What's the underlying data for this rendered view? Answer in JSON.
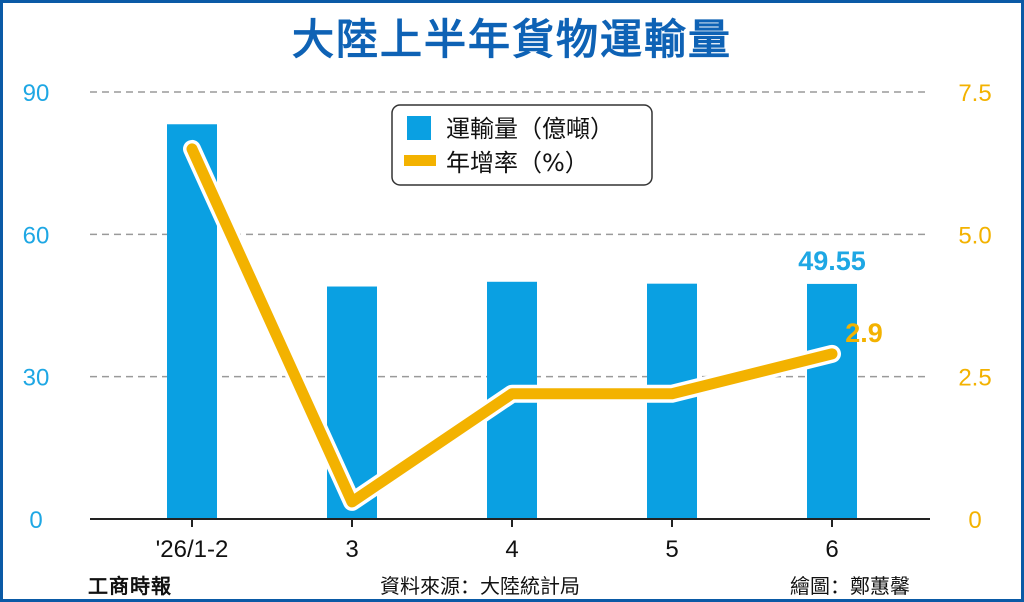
{
  "title": "大陸上半年貨物運輸量",
  "chart_data": {
    "type": "bar+line",
    "title": "大陸上半年貨物運輸量",
    "categories": [
      "'26/1-2",
      "3",
      "4",
      "5",
      "6"
    ],
    "series": [
      {
        "name": "運輸量（億噸）",
        "type": "bar",
        "axis": "left",
        "color": "#0aa0e2",
        "values": [
          83.2,
          49.0,
          50.0,
          49.6,
          49.55
        ]
      },
      {
        "name": "年增率（%）",
        "type": "line",
        "axis": "right",
        "color": "#f3b200",
        "values": [
          6.5,
          0.3,
          2.2,
          2.2,
          2.9
        ]
      }
    ],
    "y_left": {
      "ylim": [
        0,
        90
      ],
      "ticks": [
        "0",
        "30",
        "60",
        "90"
      ]
    },
    "y_right": {
      "ylim": [
        0,
        7.5
      ],
      "ticks": [
        "0",
        "2.5",
        "5.0",
        "7.5"
      ]
    },
    "data_labels": [
      {
        "series": 0,
        "index": 4,
        "text": "49.55"
      },
      {
        "series": 1,
        "index": 4,
        "text": "2.9"
      }
    ],
    "legend_position": "top-center",
    "grid": true
  },
  "footer": {
    "logo": "工商時報",
    "source": "資料來源：大陸統計局",
    "credit": "繪圖：鄭蕙馨"
  },
  "colors": {
    "title": "#0e62b5",
    "bar": "#0aa0e2",
    "line": "#f3b200",
    "left_axis_text": "#1ea7e4",
    "right_axis_text": "#f3b200",
    "frame": "#0a5aa6"
  }
}
